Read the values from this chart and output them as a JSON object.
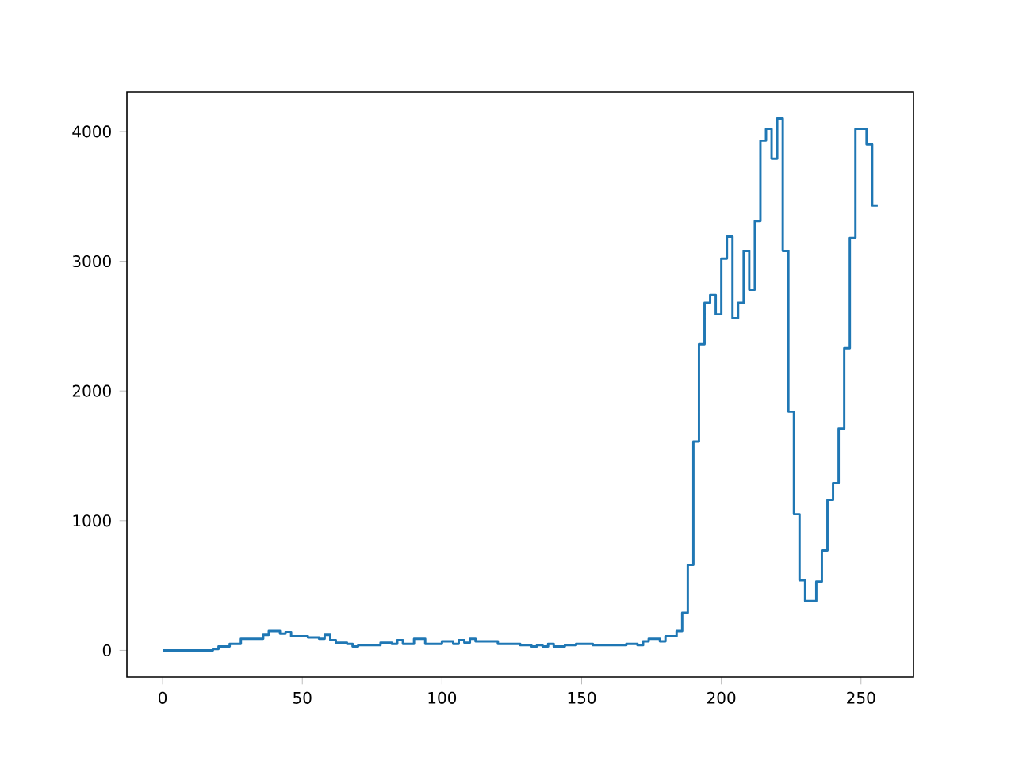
{
  "chart_data": {
    "type": "step",
    "x": [
      0,
      18,
      20,
      24,
      28,
      36,
      38,
      42,
      44,
      46,
      52,
      56,
      58,
      60,
      62,
      66,
      68,
      70,
      78,
      82,
      84,
      86,
      90,
      94,
      100,
      104,
      106,
      108,
      110,
      112,
      120,
      128,
      132,
      134,
      136,
      138,
      140,
      144,
      148,
      150,
      154,
      166,
      170,
      172,
      174,
      178,
      180,
      184,
      186,
      188,
      190,
      192,
      194,
      196,
      198,
      200,
      202,
      204,
      206,
      208,
      210,
      212,
      214,
      216,
      218,
      220,
      222,
      224,
      226,
      228,
      230,
      234,
      236,
      238,
      240,
      242,
      244,
      246,
      248,
      252,
      254,
      256
    ],
    "values": [
      0,
      0,
      10,
      30,
      50,
      90,
      120,
      150,
      130,
      140,
      110,
      100,
      90,
      120,
      80,
      60,
      50,
      30,
      40,
      60,
      50,
      80,
      50,
      90,
      50,
      70,
      50,
      80,
      60,
      90,
      70,
      50,
      40,
      30,
      40,
      30,
      50,
      30,
      40,
      50,
      50,
      40,
      50,
      40,
      70,
      90,
      70,
      110,
      150,
      290,
      660,
      1610,
      2360,
      2680,
      2740,
      2590,
      3020,
      3190,
      2560,
      2680,
      3080,
      2780,
      3310,
      3930,
      4020,
      3790,
      4100,
      3080,
      1840,
      1050,
      540,
      380,
      530,
      770,
      1160,
      1290,
      1710,
      2330,
      3180,
      4020,
      3900,
      3430
    ],
    "color": "#1f77b4",
    "xlim": [
      -12.8,
      268.8
    ],
    "ylim": [
      -205,
      4305
    ],
    "xticks": [
      0,
      50,
      100,
      150,
      200,
      250
    ],
    "yticks": [
      0,
      1000,
      2000,
      3000,
      4000
    ]
  }
}
